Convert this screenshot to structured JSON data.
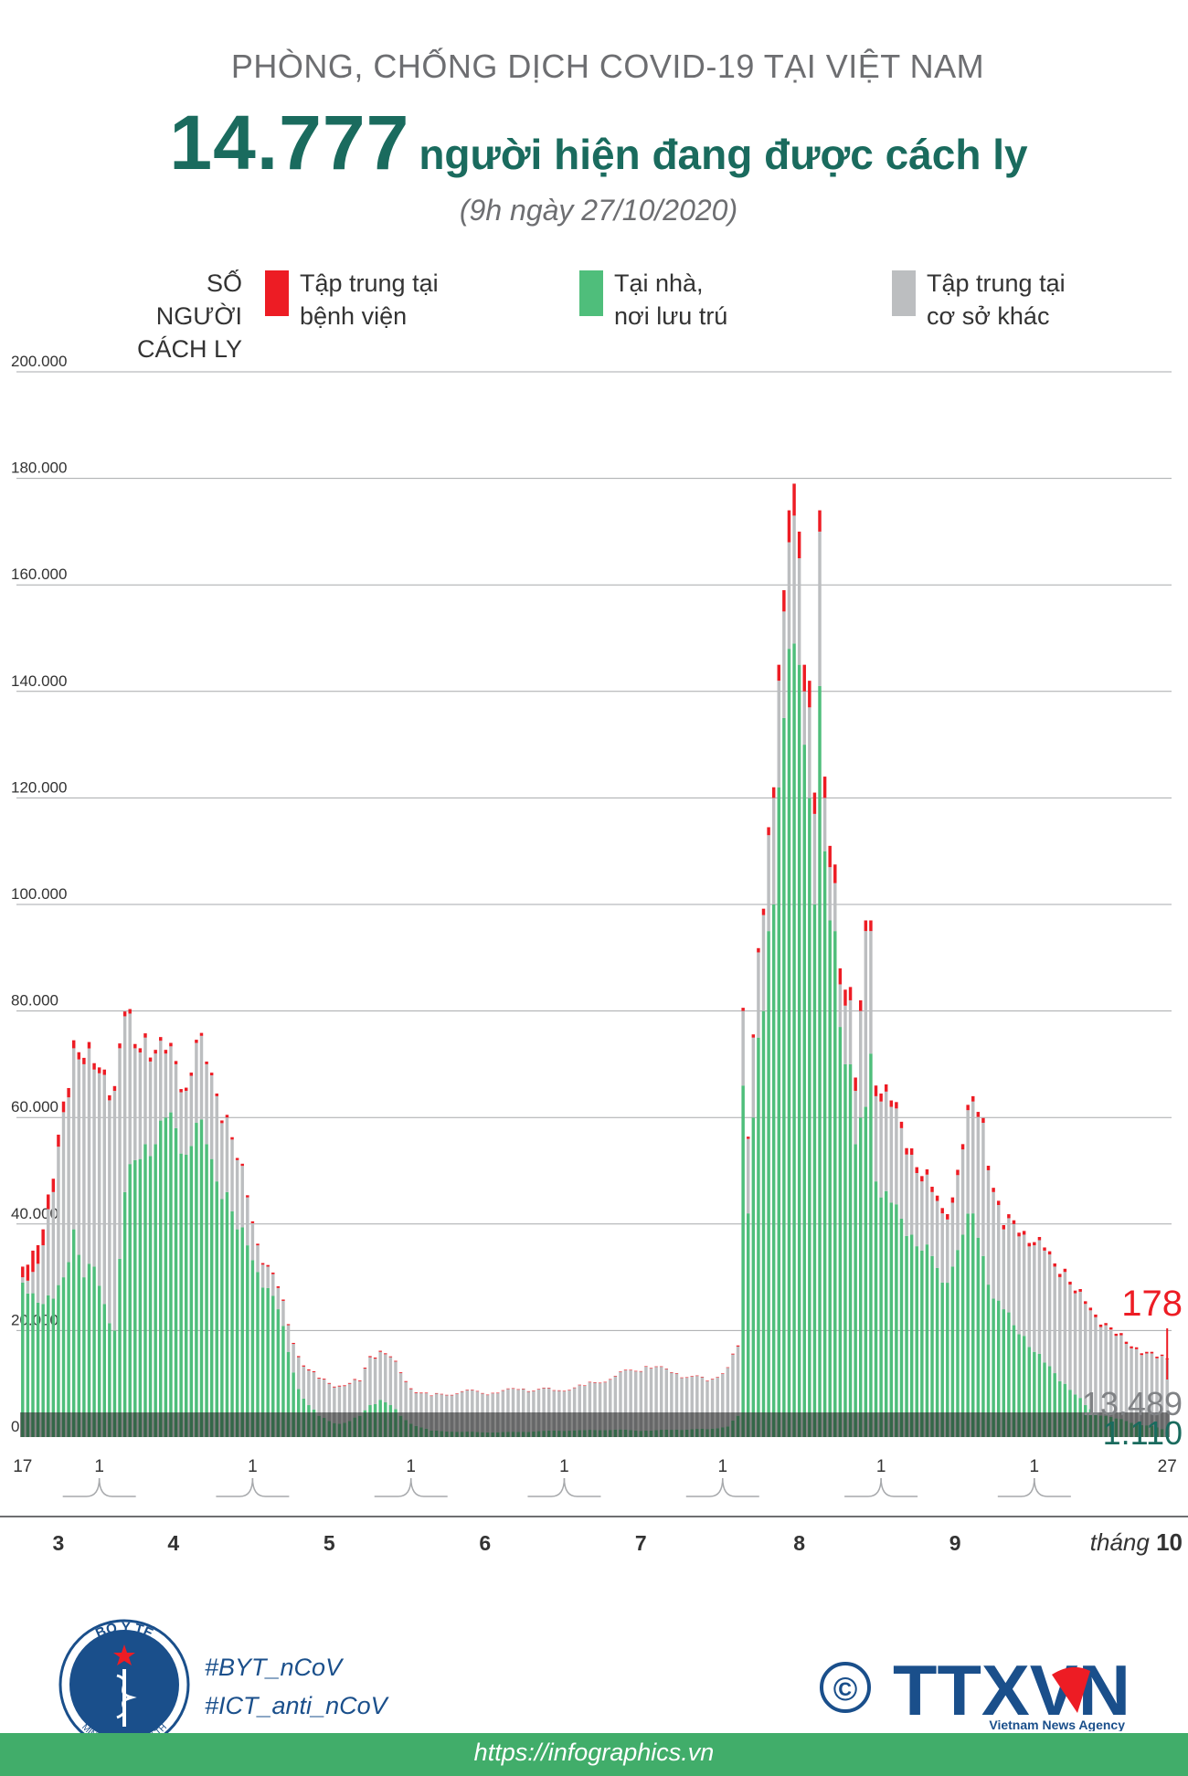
{
  "header": {
    "supertitle": "PHÒNG, CHỐNG DỊCH COVID-19 TẠI VIỆT NAM",
    "headline_number": "14.777",
    "headline_text": "người hiện đang được cách ly",
    "timestamp": "(9h ngày 27/10/2020)"
  },
  "legend": {
    "title_line1": "SỐ NGƯỜI",
    "title_line2": "CÁCH LY",
    "items": [
      {
        "line1": "Tập trung tại",
        "line2": "bệnh viện",
        "color": "#ed1c24"
      },
      {
        "line1": "Tại nhà,",
        "line2": "nơi lưu trú",
        "color": "#4fbe7b"
      },
      {
        "line1": "Tập trung tại",
        "line2": "cơ sở khác",
        "color": "#bcbec0"
      }
    ]
  },
  "chart_data": {
    "type": "bar",
    "stacked": true,
    "title": "Số người cách ly",
    "ylabel": "SỐ NGƯỜI CÁCH LY",
    "xlabel": "tháng",
    "ylim": [
      0,
      200000
    ],
    "y_ticks": [
      0,
      20000,
      40000,
      60000,
      80000,
      100000,
      120000,
      140000,
      160000,
      180000,
      200000
    ],
    "y_tick_labels": [
      "0",
      "20.000",
      "40.000",
      "60.000",
      "80.000",
      "100.000",
      "120.000",
      "140.000",
      "160.000",
      "180.000",
      "200.000"
    ],
    "date_range": [
      "2020-03-17",
      "2020-10-27"
    ],
    "day_markers": [
      {
        "label": "17",
        "index": 0
      },
      {
        "label": "1",
        "index": 15
      },
      {
        "label": "1",
        "index": 45
      },
      {
        "label": "1",
        "index": 76
      },
      {
        "label": "1",
        "index": 106
      },
      {
        "label": "1",
        "index": 137
      },
      {
        "label": "1",
        "index": 168
      },
      {
        "label": "1",
        "index": 198
      },
      {
        "label": "27",
        "index": 224
      }
    ],
    "month_labels": [
      {
        "label": "3",
        "start": 0,
        "end": 14
      },
      {
        "label": "4",
        "start": 15,
        "end": 44
      },
      {
        "label": "5",
        "start": 45,
        "end": 75
      },
      {
        "label": "6",
        "start": 76,
        "end": 105
      },
      {
        "label": "7",
        "start": 106,
        "end": 136
      },
      {
        "label": "8",
        "start": 137,
        "end": 167
      },
      {
        "label": "9",
        "start": 168,
        "end": 197
      }
    ],
    "month_suffix_prefix": "tháng",
    "month_suffix_value": "10",
    "series_order": [
      "Tại nhà, nơi lưu trú",
      "Tập trung tại cơ sở khác",
      "Tập trung tại bệnh viện"
    ],
    "anchors": [
      [
        0,
        29000,
        1000,
        2000
      ],
      [
        2,
        27000,
        4000,
        4000
      ],
      [
        4,
        25000,
        11000,
        3000
      ],
      [
        6,
        26000,
        20000,
        2500
      ],
      [
        8,
        30000,
        31000,
        2000
      ],
      [
        10,
        39000,
        34000,
        1500
      ],
      [
        12,
        30000,
        40000,
        1200
      ],
      [
        14,
        32000,
        37000,
        1200
      ],
      [
        16,
        25000,
        43000,
        1000
      ],
      [
        18,
        20000,
        45000,
        900
      ],
      [
        20,
        46000,
        33000,
        900
      ],
      [
        22,
        52000,
        21000,
        800
      ],
      [
        24,
        55000,
        20000,
        800
      ],
      [
        26,
        55000,
        17000,
        700
      ],
      [
        28,
        60000,
        12000,
        700
      ],
      [
        30,
        58000,
        12000,
        600
      ],
      [
        32,
        53000,
        12000,
        600
      ],
      [
        34,
        59000,
        15000,
        600
      ],
      [
        36,
        55000,
        15000,
        500
      ],
      [
        38,
        48000,
        16000,
        500
      ],
      [
        40,
        46000,
        14000,
        500
      ],
      [
        42,
        39000,
        13000,
        400
      ],
      [
        44,
        36000,
        9000,
        400
      ],
      [
        46,
        31000,
        5000,
        300
      ],
      [
        48,
        28000,
        4000,
        300
      ],
      [
        50,
        24000,
        4000,
        300
      ],
      [
        52,
        16000,
        5000,
        200
      ],
      [
        54,
        9000,
        6000,
        200
      ],
      [
        56,
        6000,
        6500,
        200
      ],
      [
        58,
        4000,
        7000,
        150
      ],
      [
        60,
        3000,
        7000,
        150
      ],
      [
        62,
        2500,
        7000,
        150
      ],
      [
        64,
        3000,
        7000,
        150
      ],
      [
        66,
        4000,
        6500,
        150
      ],
      [
        68,
        6000,
        9000,
        200
      ],
      [
        70,
        7000,
        9000,
        200
      ],
      [
        72,
        6000,
        9000,
        150
      ],
      [
        74,
        4000,
        8000,
        150
      ],
      [
        76,
        2500,
        6500,
        150
      ],
      [
        80,
        1200,
        6500,
        100
      ],
      [
        86,
        1000,
        7500,
        100
      ],
      [
        92,
        900,
        7300,
        100
      ],
      [
        98,
        1000,
        8000,
        100
      ],
      [
        104,
        1200,
        7500,
        100
      ],
      [
        110,
        1300,
        8300,
        100
      ],
      [
        116,
        1400,
        10000,
        100
      ],
      [
        122,
        1200,
        12000,
        100
      ],
      [
        128,
        1400,
        10500,
        100
      ],
      [
        134,
        1500,
        9000,
        100
      ],
      [
        138,
        2000,
        11000,
        100
      ],
      [
        140,
        4000,
        13000,
        200
      ],
      [
        141,
        66000,
        14000,
        600
      ],
      [
        142,
        42000,
        14000,
        400
      ],
      [
        143,
        60000,
        15000,
        600
      ],
      [
        144,
        75000,
        16000,
        800
      ],
      [
        145,
        80000,
        18000,
        1200
      ],
      [
        146,
        95000,
        18000,
        1500
      ],
      [
        147,
        100000,
        20000,
        2000
      ],
      [
        148,
        122000,
        20000,
        3000
      ],
      [
        149,
        135000,
        20000,
        4000
      ],
      [
        150,
        148000,
        20000,
        6000
      ],
      [
        151,
        149000,
        24000,
        6000
      ],
      [
        152,
        145000,
        20000,
        5000
      ],
      [
        153,
        130000,
        10000,
        5000
      ],
      [
        154,
        120000,
        17000,
        5000
      ],
      [
        155,
        100000,
        17000,
        4000
      ],
      [
        156,
        141000,
        29000,
        4000
      ],
      [
        157,
        110000,
        10000,
        4000
      ],
      [
        158,
        97000,
        10000,
        4000
      ],
      [
        159,
        95000,
        9000,
        3500
      ],
      [
        160,
        77000,
        8000,
        3000
      ],
      [
        161,
        70000,
        11000,
        3000
      ],
      [
        162,
        70000,
        12000,
        2500
      ],
      [
        163,
        55000,
        10000,
        2500
      ],
      [
        164,
        60000,
        20000,
        2000
      ],
      [
        165,
        62000,
        33000,
        2000
      ],
      [
        166,
        72000,
        23000,
        2000
      ],
      [
        167,
        48000,
        16000,
        2000
      ],
      [
        168,
        45000,
        18000,
        1500
      ],
      [
        170,
        44000,
        18000,
        1200
      ],
      [
        172,
        41000,
        17000,
        1200
      ],
      [
        174,
        38000,
        15000,
        1200
      ],
      [
        176,
        35000,
        13000,
        1000
      ],
      [
        178,
        34000,
        12000,
        1000
      ],
      [
        180,
        29000,
        13000,
        1000
      ],
      [
        182,
        32000,
        12000,
        1000
      ],
      [
        184,
        38000,
        16000,
        1000
      ],
      [
        186,
        42000,
        21000,
        1000
      ],
      [
        188,
        34000,
        25000,
        900
      ],
      [
        190,
        26000,
        20000,
        800
      ],
      [
        192,
        24000,
        15000,
        800
      ],
      [
        194,
        21000,
        19000,
        700
      ],
      [
        196,
        19000,
        19000,
        700
      ],
      [
        198,
        16000,
        20000,
        600
      ],
      [
        200,
        14000,
        21000,
        600
      ],
      [
        202,
        12000,
        20000,
        600
      ],
      [
        204,
        10000,
        21000,
        600
      ],
      [
        206,
        8000,
        19000,
        500
      ],
      [
        208,
        6000,
        19000,
        500
      ],
      [
        210,
        4500,
        18000,
        500
      ],
      [
        212,
        4000,
        17000,
        400
      ],
      [
        214,
        3500,
        15500,
        400
      ],
      [
        216,
        3000,
        14500,
        400
      ],
      [
        218,
        2500,
        14000,
        350
      ],
      [
        220,
        2200,
        13500,
        300
      ],
      [
        222,
        1800,
        13000,
        300
      ],
      [
        224,
        1110,
        13489,
        178
      ]
    ],
    "annotations": [
      {
        "label": "178",
        "value": 178,
        "series": "Tập trung tại bệnh viện",
        "color": "#ed1c24"
      },
      {
        "label": "13.489",
        "value": 13489,
        "series": "Tập trung tại cơ sở khác",
        "color": "#808285"
      },
      {
        "label": "1.110",
        "value": 1110,
        "series": "Tại nhà, nơi lưu trú",
        "color": "#1a6b5e"
      }
    ]
  },
  "logo_left": {
    "top_text": "BỘ Y TẾ",
    "bottom_text": "MINISTRY OF HEALTH"
  },
  "hashtags": [
    "#BYT_nCoV",
    "#ICT_anti_nCoV"
  ],
  "logo_right": {
    "copyright": "©",
    "brand": "TTXVN",
    "tagline": "Vietnam News Agency"
  },
  "footer": {
    "url": "https://infographics.vn"
  },
  "colors": {
    "hospital": "#ed1c24",
    "home": "#4fbe7b",
    "other": "#bcbec0",
    "title": "#1a6b5e",
    "footer": "#41ad6a"
  }
}
